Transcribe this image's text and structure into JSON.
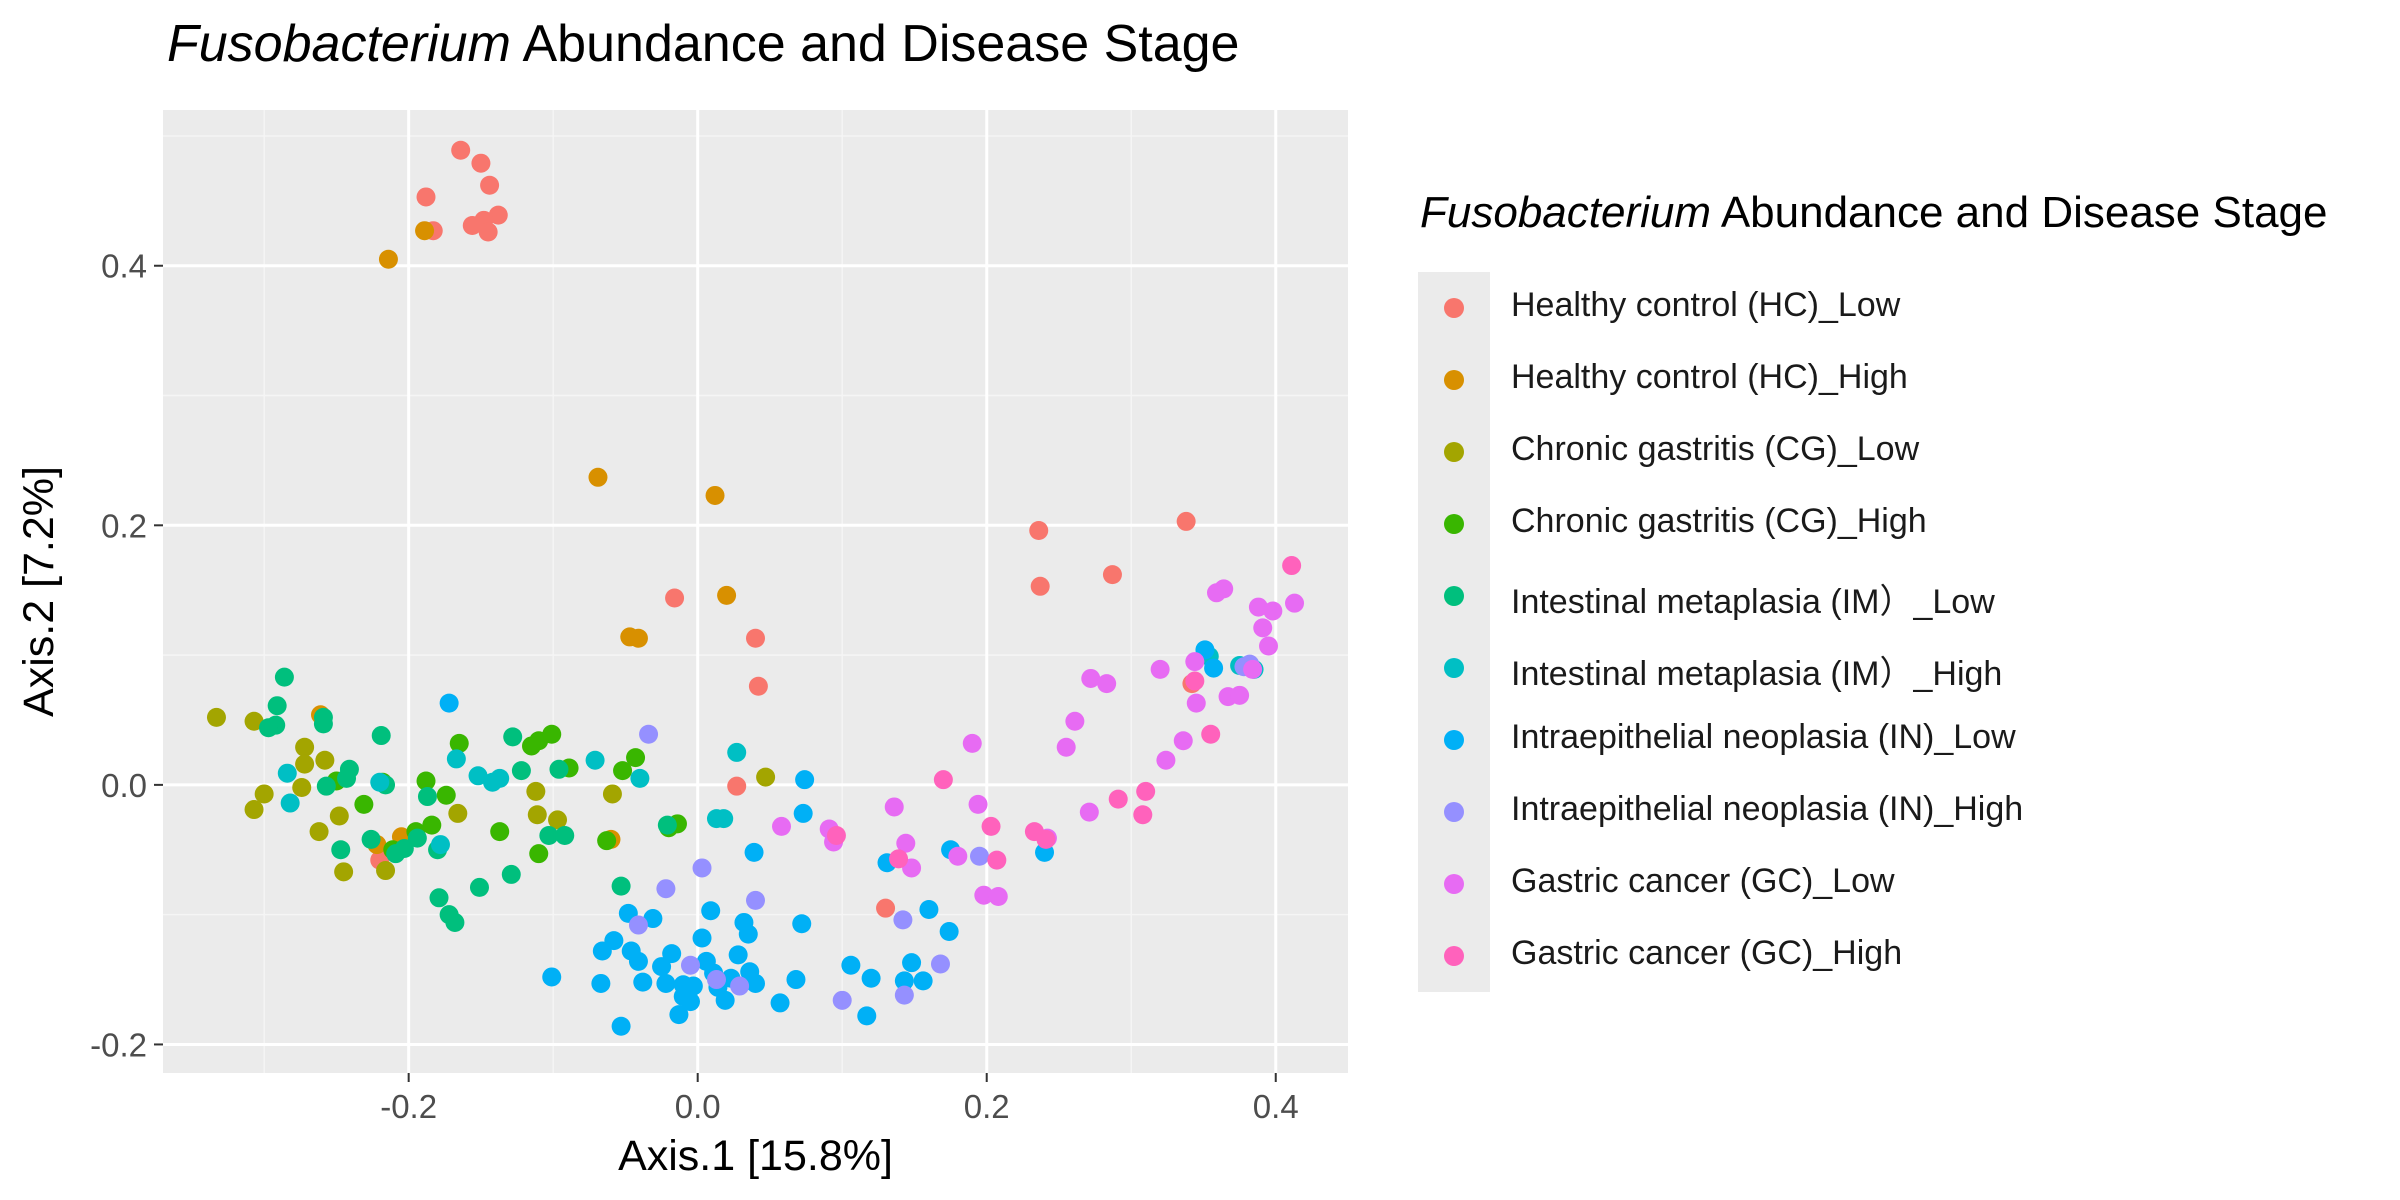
{
  "title": {
    "italic": "Fusobacterium",
    "rest": " Abundance and Disease Stage"
  },
  "legend": {
    "title_italic": "Fusobacterium",
    "title_rest": " Abundance and Disease Stage",
    "items": [
      {
        "label": "Healthy control (HC)_Low",
        "color": "#F8766D"
      },
      {
        "label": "Healthy control (HC)_High",
        "color": "#D89000"
      },
      {
        "label": "Chronic gastritis (CG)_Low",
        "color": "#A3A500"
      },
      {
        "label": "Chronic gastritis (CG)_High",
        "color": "#39B600"
      },
      {
        "label": "Intestinal metaplasia (IM）_Low",
        "color": "#00BF7D"
      },
      {
        "label": "Intestinal metaplasia (IM）_High",
        "color": "#00BFC4"
      },
      {
        "label": "Intraepithelial neoplasia (IN)_Low",
        "color": "#00B0F6"
      },
      {
        "label": "Intraepithelial neoplasia (IN)_High",
        "color": "#9590FF"
      },
      {
        "label": "Gastric cancer (GC)_Low",
        "color": "#E76BF3"
      },
      {
        "label": "Gastric cancer (GC)_High",
        "color": "#FF62BC"
      }
    ]
  },
  "chart_data": {
    "type": "scatter",
    "xlabel": "Axis.1   [15.8%]",
    "ylabel": "Axis.2   [7.2%]",
    "xlim": [
      -0.37,
      0.45
    ],
    "ylim": [
      -0.222,
      0.52
    ],
    "xticks": [
      -0.2,
      0.0,
      0.2,
      0.4
    ],
    "xtick_labels": [
      "-0.2",
      "0.0",
      "0.2",
      "0.4"
    ],
    "yticks": [
      -0.2,
      0.0,
      0.2,
      0.4
    ],
    "ytick_labels": [
      "-0.2",
      "0.0",
      "0.2",
      "0.4"
    ],
    "grid": true,
    "legend_position": "right",
    "series": [
      {
        "name": "Healthy control (HC)_Low",
        "color": "#F8766D",
        "points": [
          [
            -0.164,
            0.489
          ],
          [
            -0.15,
            0.479
          ],
          [
            -0.188,
            0.453
          ],
          [
            -0.144,
            0.462
          ],
          [
            -0.138,
            0.439
          ],
          [
            -0.148,
            0.435
          ],
          [
            -0.156,
            0.431
          ],
          [
            -0.145,
            0.426
          ],
          [
            -0.183,
            0.427
          ],
          [
            -0.016,
            0.144
          ],
          [
            0.04,
            0.113
          ],
          [
            0.042,
            0.076
          ],
          [
            0.236,
            0.196
          ],
          [
            0.237,
            0.153
          ],
          [
            0.287,
            0.162
          ],
          [
            0.338,
            0.203
          ],
          [
            -0.22,
            -0.058
          ],
          [
            0.027,
            -0.001
          ],
          [
            0.13,
            -0.095
          ],
          [
            0.342,
            0.078
          ]
        ]
      },
      {
        "name": "Healthy control (HC)_High",
        "color": "#D89000",
        "points": [
          [
            -0.214,
            0.405
          ],
          [
            -0.189,
            0.427
          ],
          [
            -0.069,
            0.237
          ],
          [
            0.012,
            0.223
          ],
          [
            0.02,
            0.146
          ],
          [
            -0.047,
            0.114
          ],
          [
            -0.041,
            0.113
          ],
          [
            -0.261,
            0.054
          ],
          [
            -0.222,
            -0.046
          ],
          [
            -0.205,
            -0.04
          ],
          [
            -0.06,
            -0.042
          ]
        ]
      },
      {
        "name": "Chronic gastritis (CG)_Low",
        "color": "#A3A500",
        "points": [
          [
            -0.333,
            0.052
          ],
          [
            -0.307,
            0.049
          ],
          [
            -0.272,
            0.029
          ],
          [
            -0.272,
            0.016
          ],
          [
            -0.274,
            -0.002
          ],
          [
            -0.3,
            -0.007
          ],
          [
            -0.307,
            -0.019
          ],
          [
            -0.262,
            -0.036
          ],
          [
            -0.245,
            -0.067
          ],
          [
            -0.216,
            -0.066
          ],
          [
            -0.166,
            -0.022
          ],
          [
            -0.111,
            -0.023
          ],
          [
            -0.112,
            -0.005
          ],
          [
            -0.097,
            -0.027
          ],
          [
            -0.059,
            -0.007
          ],
          [
            0.047,
            0.006
          ],
          [
            -0.248,
            -0.024
          ],
          [
            -0.258,
            0.019
          ]
        ]
      },
      {
        "name": "Chronic gastritis (CG)_High",
        "color": "#39B600",
        "points": [
          [
            -0.231,
            -0.015
          ],
          [
            -0.218,
            0.002
          ],
          [
            -0.195,
            -0.036
          ],
          [
            -0.184,
            -0.031
          ],
          [
            -0.188,
            0.003
          ],
          [
            -0.165,
            0.032
          ],
          [
            -0.137,
            -0.036
          ],
          [
            -0.11,
            0.034
          ],
          [
            -0.101,
            0.039
          ],
          [
            -0.089,
            0.013
          ],
          [
            -0.063,
            -0.043
          ],
          [
            -0.043,
            0.021
          ],
          [
            -0.02,
            -0.033
          ],
          [
            -0.014,
            -0.03
          ],
          [
            -0.11,
            -0.053
          ],
          [
            -0.052,
            0.011
          ],
          [
            -0.115,
            0.03
          ],
          [
            -0.174,
            -0.008
          ],
          [
            -0.211,
            -0.05
          ],
          [
            -0.25,
            0.003
          ]
        ]
      },
      {
        "name": "Intestinal metaplasia (IM）_Low",
        "color": "#00BF7D",
        "points": [
          [
            -0.286,
            0.083
          ],
          [
            -0.291,
            0.061
          ],
          [
            -0.292,
            0.046
          ],
          [
            -0.297,
            0.044
          ],
          [
            -0.259,
            0.052
          ],
          [
            -0.259,
            0.047
          ],
          [
            -0.241,
            0.012
          ],
          [
            -0.219,
            0.038
          ],
          [
            -0.243,
            0.005
          ],
          [
            -0.216,
            0.0
          ],
          [
            -0.257,
            -0.001
          ],
          [
            -0.247,
            -0.05
          ],
          [
            -0.226,
            -0.042
          ],
          [
            -0.203,
            -0.049
          ],
          [
            -0.194,
            -0.041
          ],
          [
            -0.187,
            -0.009
          ],
          [
            -0.18,
            -0.05
          ],
          [
            -0.179,
            -0.087
          ],
          [
            -0.172,
            -0.1
          ],
          [
            -0.168,
            -0.106
          ],
          [
            -0.151,
            -0.079
          ],
          [
            -0.128,
            0.037
          ],
          [
            -0.122,
            0.011
          ],
          [
            -0.096,
            0.012
          ],
          [
            -0.103,
            -0.039
          ],
          [
            -0.092,
            -0.039
          ],
          [
            -0.053,
            -0.078
          ],
          [
            -0.021,
            -0.031
          ],
          [
            -0.129,
            -0.069
          ],
          [
            -0.209,
            -0.053
          ]
        ]
      },
      {
        "name": "Intestinal metaplasia (IM）_High",
        "color": "#00BFC4",
        "points": [
          [
            -0.284,
            0.009
          ],
          [
            -0.282,
            -0.014
          ],
          [
            -0.22,
            0.002
          ],
          [
            -0.178,
            -0.046
          ],
          [
            -0.167,
            0.02
          ],
          [
            -0.152,
            0.007
          ],
          [
            -0.142,
            0.002
          ],
          [
            -0.137,
            0.005
          ],
          [
            -0.071,
            0.019
          ],
          [
            -0.04,
            0.005
          ],
          [
            0.027,
            0.025
          ],
          [
            0.018,
            -0.026
          ],
          [
            0.013,
            -0.026
          ],
          [
            0.385,
            0.089
          ],
          [
            0.375,
            0.092
          ],
          [
            0.354,
            0.099
          ]
        ]
      },
      {
        "name": "Intraepithelial neoplasia (IN)_Low",
        "color": "#00B0F6",
        "points": [
          [
            -0.172,
            0.063
          ],
          [
            -0.101,
            -0.148
          ],
          [
            -0.067,
            -0.153
          ],
          [
            -0.066,
            -0.128
          ],
          [
            -0.058,
            -0.12
          ],
          [
            -0.053,
            -0.186
          ],
          [
            -0.048,
            -0.099
          ],
          [
            -0.046,
            -0.128
          ],
          [
            -0.041,
            -0.136
          ],
          [
            -0.038,
            -0.152
          ],
          [
            -0.031,
            -0.103
          ],
          [
            -0.025,
            -0.14
          ],
          [
            -0.022,
            -0.153
          ],
          [
            -0.018,
            -0.13
          ],
          [
            -0.013,
            -0.177
          ],
          [
            -0.01,
            -0.154
          ],
          [
            -0.005,
            -0.167
          ],
          [
            -0.003,
            -0.155
          ],
          [
            0.003,
            -0.118
          ],
          [
            0.006,
            -0.136
          ],
          [
            0.009,
            -0.097
          ],
          [
            0.011,
            -0.145
          ],
          [
            0.014,
            -0.156
          ],
          [
            0.019,
            -0.166
          ],
          [
            0.023,
            -0.149
          ],
          [
            0.028,
            -0.131
          ],
          [
            0.032,
            -0.106
          ],
          [
            0.035,
            -0.115
          ],
          [
            0.036,
            -0.144
          ],
          [
            0.04,
            -0.153
          ],
          [
            0.057,
            -0.168
          ],
          [
            0.068,
            -0.15
          ],
          [
            0.072,
            -0.107
          ],
          [
            0.074,
            0.004
          ],
          [
            0.073,
            -0.022
          ],
          [
            0.106,
            -0.139
          ],
          [
            0.12,
            -0.149
          ],
          [
            0.117,
            -0.178
          ],
          [
            0.131,
            -0.06
          ],
          [
            0.143,
            -0.151
          ],
          [
            0.148,
            -0.137
          ],
          [
            0.156,
            -0.151
          ],
          [
            0.16,
            -0.096
          ],
          [
            0.175,
            -0.05
          ],
          [
            0.174,
            -0.113
          ],
          [
            0.24,
            -0.052
          ],
          [
            0.351,
            0.104
          ],
          [
            0.357,
            0.09
          ],
          [
            0.039,
            -0.052
          ],
          [
            -0.01,
            -0.163
          ]
        ]
      },
      {
        "name": "Intraepithelial neoplasia (IN)_High",
        "color": "#9590FF",
        "points": [
          [
            -0.034,
            0.039
          ],
          [
            -0.041,
            -0.108
          ],
          [
            -0.022,
            -0.08
          ],
          [
            0.003,
            -0.064
          ],
          [
            0.013,
            -0.15
          ],
          [
            0.029,
            -0.155
          ],
          [
            0.04,
            -0.089
          ],
          [
            0.1,
            -0.166
          ],
          [
            0.142,
            -0.104
          ],
          [
            0.143,
            -0.162
          ],
          [
            0.168,
            -0.138
          ],
          [
            0.195,
            -0.055
          ],
          [
            0.378,
            0.091
          ],
          [
            0.382,
            0.093
          ],
          [
            -0.005,
            -0.139
          ]
        ]
      },
      {
        "name": "Gastric cancer (GC)_Low",
        "color": "#E76BF3",
        "points": [
          [
            0.058,
            -0.032
          ],
          [
            0.091,
            -0.034
          ],
          [
            0.094,
            -0.044
          ],
          [
            0.136,
            -0.017
          ],
          [
            0.144,
            -0.045
          ],
          [
            0.148,
            -0.064
          ],
          [
            0.18,
            -0.055
          ],
          [
            0.19,
            0.032
          ],
          [
            0.194,
            -0.015
          ],
          [
            0.198,
            -0.085
          ],
          [
            0.208,
            -0.086
          ],
          [
            0.242,
            -0.041
          ],
          [
            0.255,
            0.029
          ],
          [
            0.261,
            0.049
          ],
          [
            0.272,
            0.082
          ],
          [
            0.283,
            0.078
          ],
          [
            0.271,
            -0.021
          ],
          [
            0.32,
            0.089
          ],
          [
            0.324,
            0.019
          ],
          [
            0.336,
            0.034
          ],
          [
            0.344,
            0.095
          ],
          [
            0.345,
            0.063
          ],
          [
            0.359,
            0.148
          ],
          [
            0.364,
            0.151
          ],
          [
            0.367,
            0.068
          ],
          [
            0.375,
            0.069
          ],
          [
            0.384,
            0.089
          ],
          [
            0.388,
            0.137
          ],
          [
            0.391,
            0.121
          ],
          [
            0.395,
            0.107
          ],
          [
            0.398,
            0.134
          ],
          [
            0.413,
            0.14
          ]
        ]
      },
      {
        "name": "Gastric cancer (GC)_High",
        "color": "#FF62BC",
        "points": [
          [
            0.096,
            -0.039
          ],
          [
            0.139,
            -0.057
          ],
          [
            0.17,
            0.004
          ],
          [
            0.203,
            -0.032
          ],
          [
            0.207,
            -0.058
          ],
          [
            0.233,
            -0.036
          ],
          [
            0.241,
            -0.042
          ],
          [
            0.291,
            -0.011
          ],
          [
            0.308,
            -0.023
          ],
          [
            0.31,
            -0.005
          ],
          [
            0.344,
            0.08
          ],
          [
            0.355,
            0.039
          ],
          [
            0.411,
            0.169
          ]
        ]
      }
    ]
  }
}
